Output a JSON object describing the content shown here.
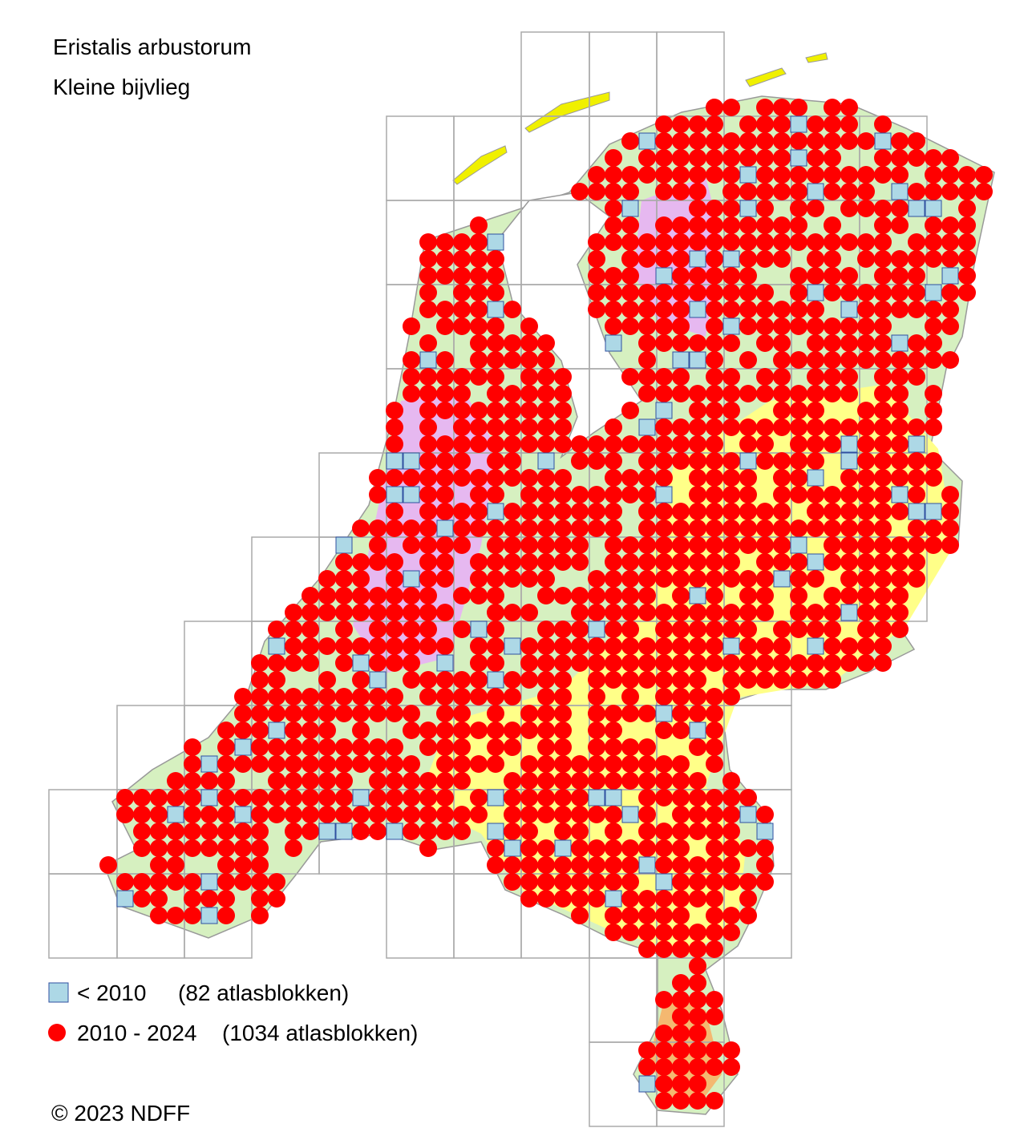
{
  "title": "Eristalis arbustorum",
  "subtitle": "Kleine bijvlieg",
  "legend": [
    {
      "label": "< 2010",
      "count": "(82 atlasblokken)"
    },
    {
      "label": "2010 - 2024",
      "count": "(1034 atlasblokken)"
    }
  ],
  "copyright": "© 2023 NDFF"
}
